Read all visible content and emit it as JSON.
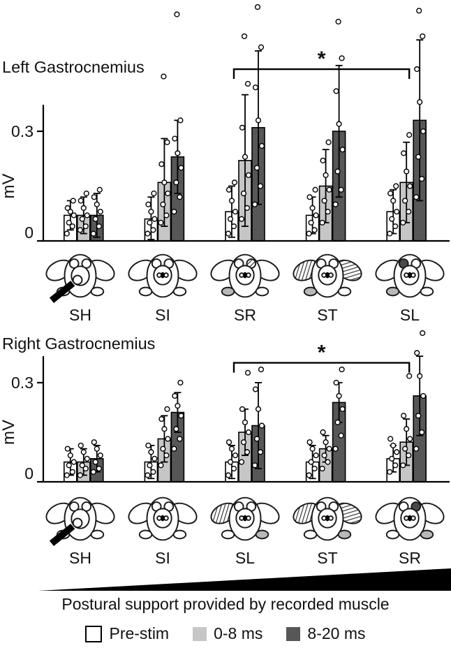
{
  "figure": {
    "support_label": "Postural support provided by recorded muscle"
  },
  "legend": {
    "items": [
      {
        "label": "Pre-stim",
        "color": "#ffffff",
        "border": "#000000"
      },
      {
        "label": "0-8 ms",
        "color": "#c6c6c6",
        "border": ""
      },
      {
        "label": "8-20 ms",
        "color": "#575757",
        "border": ""
      }
    ]
  },
  "chart_data": [
    {
      "type": "bar",
      "title": "Left Gastrocnemius",
      "ylabel": "mV",
      "yticks": [
        {
          "value": 0,
          "label": "0"
        },
        {
          "value": 0.3,
          "label": "0.3"
        }
      ],
      "ylim": [
        0,
        0.66
      ],
      "grid": false,
      "categories": [
        "SH",
        "SI",
        "SR",
        "ST",
        "SL"
      ],
      "series": [
        {
          "name": "Pre-stim",
          "color": "#ffffff",
          "values": [
            0.07,
            0.06,
            0.08,
            0.07,
            0.08
          ],
          "sd": [
            0.04,
            0.06,
            0.07,
            0.05,
            0.06
          ]
        },
        {
          "name": "0-8 ms",
          "color": "#c6c6c6",
          "values": [
            0.07,
            0.16,
            0.22,
            0.15,
            0.16
          ],
          "sd": [
            0.05,
            0.12,
            0.18,
            0.1,
            0.11
          ]
        },
        {
          "name": "8-20 ms",
          "color": "#575757",
          "values": [
            0.07,
            0.23,
            0.31,
            0.3,
            0.33
          ],
          "sd": [
            0.06,
            0.1,
            0.21,
            0.18,
            0.22
          ]
        }
      ],
      "points": [
        [
          [
            0.02,
            0.04,
            0.05,
            0.07,
            0.08,
            0.09,
            0.11
          ],
          [
            0.02,
            0.03,
            0.05,
            0.06,
            0.08,
            0.1,
            0.13
          ],
          [
            0.02,
            0.04,
            0.06,
            0.08,
            0.11,
            0.14,
            0.16
          ],
          [
            0.02,
            0.03,
            0.05,
            0.07,
            0.09,
            0.12,
            0.14
          ],
          [
            0.02,
            0.04,
            0.06,
            0.08,
            0.11,
            0.13,
            0.15
          ]
        ],
        [
          [
            0.03,
            0.04,
            0.06,
            0.07,
            0.09,
            0.11,
            0.13
          ],
          [
            0.05,
            0.07,
            0.1,
            0.13,
            0.16,
            0.21,
            0.27,
            0.45
          ],
          [
            0.06,
            0.09,
            0.13,
            0.18,
            0.23,
            0.31,
            0.43,
            0.56
          ],
          [
            0.05,
            0.08,
            0.11,
            0.14,
            0.18,
            0.22,
            0.27
          ],
          [
            0.05,
            0.08,
            0.11,
            0.15,
            0.19,
            0.24,
            0.29
          ]
        ],
        [
          [
            0.02,
            0.04,
            0.06,
            0.08,
            0.1,
            0.12,
            0.14
          ],
          [
            0.08,
            0.12,
            0.16,
            0.2,
            0.24,
            0.28,
            0.33,
            0.62
          ],
          [
            0.1,
            0.15,
            0.2,
            0.26,
            0.33,
            0.42,
            0.53,
            0.64
          ],
          [
            0.1,
            0.14,
            0.19,
            0.25,
            0.32,
            0.41,
            0.5,
            0.6
          ],
          [
            0.12,
            0.17,
            0.23,
            0.3,
            0.38,
            0.47,
            0.56,
            0.63
          ]
        ]
      ],
      "significance": {
        "from_category": "SR",
        "to_category": "SL",
        "label": "*",
        "height_mv": 0.47
      }
    },
    {
      "type": "bar",
      "title": "Right Gastrocnemius",
      "ylabel": "mV",
      "yticks": [
        {
          "value": 0,
          "label": "0"
        },
        {
          "value": 0.3,
          "label": "0.3"
        }
      ],
      "ylim": [
        0,
        0.46
      ],
      "grid": false,
      "categories": [
        "SH",
        "SI",
        "SL",
        "ST",
        "SR"
      ],
      "series": [
        {
          "name": "Pre-stim",
          "color": "#ffffff",
          "values": [
            0.06,
            0.06,
            0.06,
            0.06,
            0.07
          ],
          "sd": [
            0.04,
            0.05,
            0.05,
            0.05,
            0.04
          ]
        },
        {
          "name": "0-8 ms",
          "color": "#c6c6c6",
          "values": [
            0.06,
            0.13,
            0.15,
            0.1,
            0.12
          ],
          "sd": [
            0.04,
            0.07,
            0.07,
            0.04,
            0.07
          ]
        },
        {
          "name": "8-20 ms",
          "color": "#575757",
          "values": [
            0.07,
            0.21,
            0.17,
            0.24,
            0.26
          ],
          "sd": [
            0.04,
            0.06,
            0.13,
            0.06,
            0.12
          ]
        }
      ],
      "points": [
        [
          [
            0.02,
            0.03,
            0.05,
            0.06,
            0.08,
            0.1
          ],
          [
            0.02,
            0.03,
            0.05,
            0.07,
            0.09,
            0.11
          ],
          [
            0.02,
            0.04,
            0.06,
            0.08,
            0.1,
            0.12
          ],
          [
            0.02,
            0.04,
            0.06,
            0.08,
            0.1,
            0.12
          ],
          [
            0.03,
            0.05,
            0.07,
            0.09,
            0.11,
            0.13
          ]
        ],
        [
          [
            0.02,
            0.04,
            0.05,
            0.07,
            0.09,
            0.11
          ],
          [
            0.05,
            0.08,
            0.1,
            0.13,
            0.16,
            0.19,
            0.22
          ],
          [
            0.06,
            0.09,
            0.12,
            0.15,
            0.18,
            0.22,
            0.33
          ],
          [
            0.04,
            0.06,
            0.08,
            0.1,
            0.12,
            0.15
          ],
          [
            0.05,
            0.08,
            0.1,
            0.13,
            0.16,
            0.2,
            0.32
          ]
        ],
        [
          [
            0.03,
            0.04,
            0.06,
            0.08,
            0.1,
            0.12
          ],
          [
            0.1,
            0.13,
            0.16,
            0.2,
            0.23,
            0.26,
            0.3
          ],
          [
            0.05,
            0.09,
            0.13,
            0.17,
            0.22,
            0.28,
            0.34
          ],
          [
            0.1,
            0.14,
            0.18,
            0.22,
            0.26,
            0.3,
            0.34
          ],
          [
            0.1,
            0.15,
            0.2,
            0.26,
            0.32,
            0.39,
            0.45
          ]
        ]
      ],
      "significance": {
        "from_category": "SL",
        "to_category": "SR",
        "label": "*",
        "height_mv": 0.36
      }
    }
  ],
  "icon_rows": [
    {
      "icons": [
        {
          "label": "SH",
          "marks": [
            "probe"
          ]
        },
        {
          "label": "SI",
          "marks": [
            "center-dot"
          ]
        },
        {
          "label": "SR",
          "marks": [
            "center-dot",
            "ear-right:hatch",
            "foot-left:gray"
          ]
        },
        {
          "label": "ST",
          "marks": [
            "center-dot",
            "paw-left:hatch",
            "paw-right:hatch",
            "foot-left:gray"
          ]
        },
        {
          "label": "SL",
          "marks": [
            "center-dot",
            "ear-left:dark",
            "foot-left:gray"
          ]
        }
      ]
    },
    {
      "icons": [
        {
          "label": "SH",
          "marks": [
            "probe"
          ]
        },
        {
          "label": "SI",
          "marks": [
            "center-dot"
          ]
        },
        {
          "label": "SL",
          "marks": [
            "center-dot",
            "paw-left:hatch",
            "foot-right:gray"
          ]
        },
        {
          "label": "ST",
          "marks": [
            "center-dot",
            "paw-left:hatch",
            "paw-right:hatch",
            "foot-right:gray"
          ]
        },
        {
          "label": "SR",
          "marks": [
            "center-dot",
            "ear-right:dark",
            "foot-right:gray"
          ]
        }
      ]
    }
  ],
  "colors": {
    "bar_prestim": "#ffffff",
    "bar_0_8ms": "#c6c6c6",
    "bar_8_20ms": "#575757",
    "ink": "#000000"
  }
}
